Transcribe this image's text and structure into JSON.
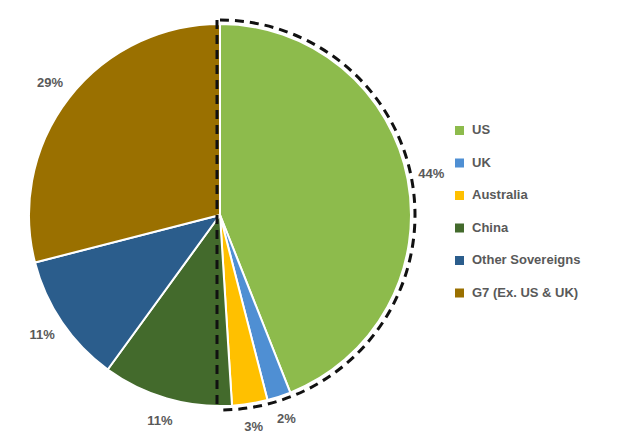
{
  "chart_data": {
    "type": "pie",
    "categories": [
      "US",
      "UK",
      "Australia",
      "China",
      "Other Sovereigns",
      "G7 (Ex. US & UK)"
    ],
    "values": [
      44,
      2,
      3,
      11,
      11,
      29
    ],
    "value_labels": [
      "44%",
      "2%",
      "3%",
      "11%",
      "11%",
      "29%"
    ],
    "colors": [
      "#8dbb4c",
      "#4f8fd3",
      "#ffc000",
      "#436a2c",
      "#2b5d8c",
      "#9a7000"
    ],
    "data_labels": true,
    "legend": "right"
  }
}
